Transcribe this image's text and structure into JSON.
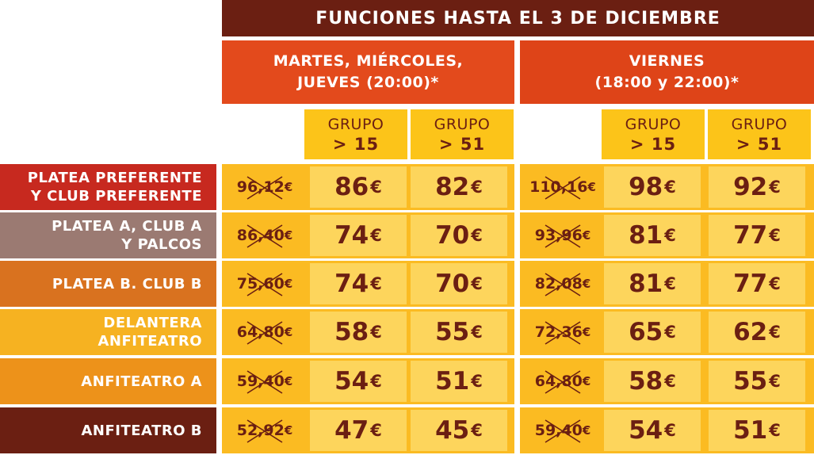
{
  "header": {
    "title": "FUNCIONES HASTA EL 3 DE DICIEMBRE"
  },
  "days": [
    {
      "label": "MARTES, MIÉRCOLES,\nJUEVES (20:00)*"
    },
    {
      "label": "VIERNES\n(18:00 y 22:00)*"
    }
  ],
  "groups": [
    {
      "label": "GRUPO",
      "size": "> 15"
    },
    {
      "label": "GRUPO",
      "size": "> 51"
    },
    {
      "label": "GRUPO",
      "size": "> 15"
    },
    {
      "label": "GRUPO",
      "size": "> 51"
    }
  ],
  "currency": "€",
  "colors": {
    "dark_header": "#6b1f12",
    "orange_header": "#e34a1c",
    "group_yellow": "#fcc419",
    "cell_light": "#fdd55c",
    "cell_dark": "#fbbb22",
    "price_text": "#6b1f12"
  },
  "rows": [
    {
      "label": "PLATEA PREFERENTE\nY CLUB PREFERENTE",
      "color": "#c7291f",
      "prices": [
        {
          "old": "96,12",
          "g15": "86",
          "g51": "82"
        },
        {
          "old": "110,16",
          "g15": "98",
          "g51": "92"
        }
      ]
    },
    {
      "label": "PLATEA A, CLUB A\nY PALCOS",
      "color": "#9b7a72",
      "prices": [
        {
          "old": "86,40",
          "g15": "74",
          "g51": "70"
        },
        {
          "old": "93,96",
          "g15": "81",
          "g51": "77"
        }
      ]
    },
    {
      "label": "PLATEA B. CLUB B",
      "color": "#d9721f",
      "prices": [
        {
          "old": "75,60",
          "g15": "74",
          "g51": "70"
        },
        {
          "old": "82,08",
          "g15": "81",
          "g51": "77"
        }
      ]
    },
    {
      "label": "DELANTERA\nANFITEATRO",
      "color": "#f6b221",
      "prices": [
        {
          "old": "64,80",
          "g15": "58",
          "g51": "55"
        },
        {
          "old": "72,36",
          "g15": "65",
          "g51": "62"
        }
      ]
    },
    {
      "label": "ANFITEATRO A",
      "color": "#ed921a",
      "prices": [
        {
          "old": "59,40",
          "g15": "54",
          "g51": "51"
        },
        {
          "old": "64,80",
          "g15": "58",
          "g51": "55"
        }
      ]
    },
    {
      "label": "ANFITEATRO B",
      "color": "#6b1f12",
      "prices": [
        {
          "old": "52,92",
          "g15": "47",
          "g51": "45"
        },
        {
          "old": "59,40",
          "g15": "54",
          "g51": "51"
        }
      ]
    }
  ]
}
